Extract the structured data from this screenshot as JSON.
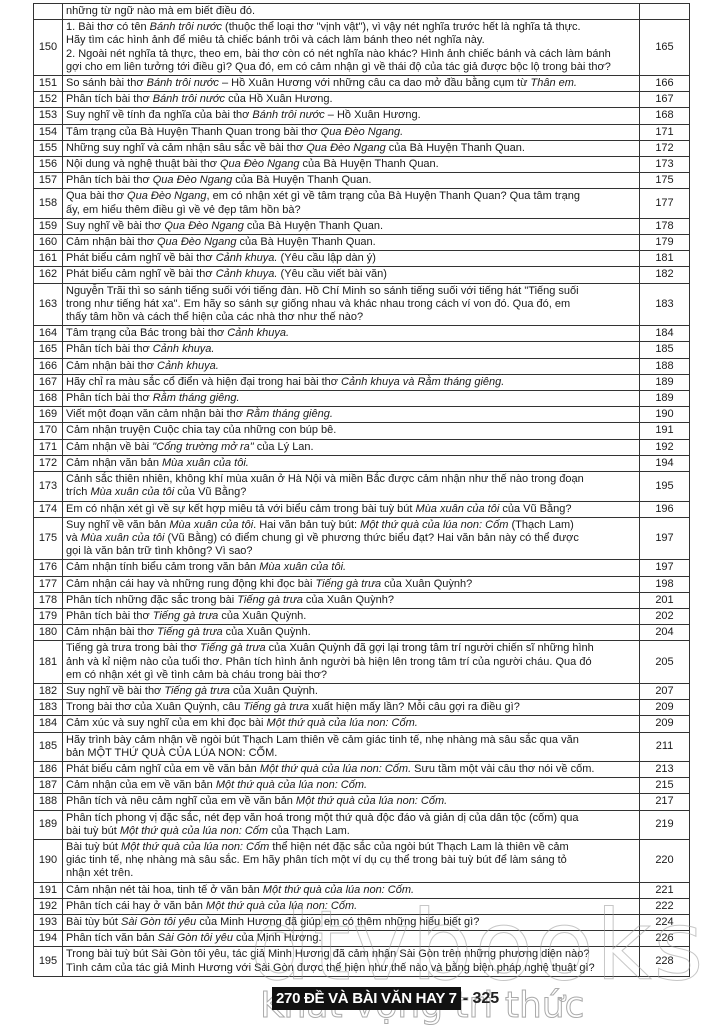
{
  "rows": [
    {
      "no": "",
      "page": "",
      "text": [
        {
          "t": "những từ ngữ nào mà em biết điều đó."
        }
      ]
    },
    {
      "no": "150",
      "page": "165",
      "text": [
        {
          "t": "1. Bài thơ có tên "
        },
        {
          "t": "Bánh trôi nước",
          "i": true
        },
        {
          "t": " (thuộc thể loại thơ \"vịnh vật\"), vì vậy nét nghĩa trước hết là nghĩa tả thực.\nHãy tìm các hình ảnh để miêu tả chiếc bánh trôi và cách làm bánh theo nét nghĩa này.\n2. Ngoài nét nghĩa tả thực, theo em, bài thơ còn có nét nghĩa nào khác? Hình ảnh chiếc bánh và cách làm bánh\ngợi cho em liên tưởng tới điều gì? Qua đó, em có cảm nhận gì về thái độ của tác giả được bộc lộ trong bài thơ?"
        }
      ]
    },
    {
      "no": "151",
      "page": "166",
      "text": [
        {
          "t": "So sánh bài thơ "
        },
        {
          "t": "Bánh trôi nước",
          "i": true
        },
        {
          "t": " – Hồ Xuân Hương với những câu ca dao mở đầu bằng cụm từ "
        },
        {
          "t": "Thân em.",
          "i": true
        }
      ]
    },
    {
      "no": "152",
      "page": "167",
      "text": [
        {
          "t": "Phân tích bài thơ "
        },
        {
          "t": "Bánh trôi nước",
          "i": true
        },
        {
          "t": " của Hồ Xuân Hương."
        }
      ]
    },
    {
      "no": "153",
      "page": "168",
      "text": [
        {
          "t": "Suy nghĩ về tính đa nghĩa của bài thơ "
        },
        {
          "t": "Bánh trôi nước",
          "i": true
        },
        {
          "t": " – Hồ Xuân Hương."
        }
      ]
    },
    {
      "no": "154",
      "page": "171",
      "text": [
        {
          "t": "Tâm trạng của Bà Huyện Thanh Quan trong bài thơ "
        },
        {
          "t": "Qua Đèo Ngang.",
          "i": true
        }
      ]
    },
    {
      "no": "155",
      "page": "172",
      "text": [
        {
          "t": "Những suy nghĩ và cảm nhận sâu sắc về bài thơ "
        },
        {
          "t": "Qua Đèo Ngang",
          "i": true
        },
        {
          "t": " của Bà Huyện Thanh Quan."
        }
      ]
    },
    {
      "no": "156",
      "page": "173",
      "text": [
        {
          "t": "Nội dung và nghệ thuật bài thơ "
        },
        {
          "t": "Qua Đèo Ngang",
          "i": true
        },
        {
          "t": " của Bà Huyện Thanh Quan."
        }
      ]
    },
    {
      "no": "157",
      "page": "175",
      "text": [
        {
          "t": "Phân tích bài thơ "
        },
        {
          "t": "Qua Đèo Ngang",
          "i": true
        },
        {
          "t": " của Bà Huyện Thanh Quan."
        }
      ]
    },
    {
      "no": "158",
      "page": "177",
      "text": [
        {
          "t": "Qua bài thơ "
        },
        {
          "t": "Qua Đèo Ngang",
          "i": true
        },
        {
          "t": ", em có nhận xét gì về tâm trạng của Bà Huyện Thanh Quan? Qua tâm trạng\nấy, em hiểu thêm điều gì về vẻ đẹp tâm hồn bà?"
        }
      ]
    },
    {
      "no": "159",
      "page": "178",
      "text": [
        {
          "t": "Suy nghĩ về bài thơ "
        },
        {
          "t": "Qua Đèo Ngang",
          "i": true
        },
        {
          "t": " của Bà Huyện Thanh Quan."
        }
      ]
    },
    {
      "no": "160",
      "page": "179",
      "text": [
        {
          "t": "Cảm nhận bài thơ "
        },
        {
          "t": "Qua Đèo Ngang",
          "i": true
        },
        {
          "t": " của Bà Huyện Thanh Quan."
        }
      ]
    },
    {
      "no": "161",
      "page": "181",
      "text": [
        {
          "t": "Phát biểu cảm nghĩ về bài thơ "
        },
        {
          "t": "Cảnh khuya.",
          "i": true
        },
        {
          "t": " (Yêu cầu lập dàn ý)"
        }
      ]
    },
    {
      "no": "162",
      "page": "182",
      "text": [
        {
          "t": "Phát biểu cảm nghĩ về bài thơ "
        },
        {
          "t": "Cảnh khuya.",
          "i": true
        },
        {
          "t": " (Yêu cầu viết bài văn)"
        }
      ]
    },
    {
      "no": "163",
      "page": "183",
      "text": [
        {
          "t": "Nguyễn Trãi thì so sánh tiếng suối với tiếng đàn. Hồ Chí Minh so sánh tiếng suối với tiếng hát \"Tiếng suối\ntrong như tiếng hát xa\". Em hãy so sánh sự giống nhau và khác nhau trong cách ví von đó. Qua đó, em\nthấy tâm hồn và cách thể hiện của các nhà thơ như thế nào?"
        }
      ]
    },
    {
      "no": "164",
      "page": "184",
      "text": [
        {
          "t": "Tâm trạng của Bác trong bài thơ "
        },
        {
          "t": "Cảnh khuya.",
          "i": true
        }
      ]
    },
    {
      "no": "165",
      "page": "185",
      "text": [
        {
          "t": "Phân tích bài thơ "
        },
        {
          "t": "Cảnh khuya.",
          "i": true
        }
      ]
    },
    {
      "no": "166",
      "page": "188",
      "text": [
        {
          "t": "Cảm nhận bài thơ "
        },
        {
          "t": "Cảnh khuya.",
          "i": true
        }
      ]
    },
    {
      "no": "167",
      "page": "189",
      "text": [
        {
          "t": "Hãy chỉ ra màu sắc cổ điển và hiện đại trong hai bài thơ "
        },
        {
          "t": "Cảnh khuya và Rằm tháng giêng.",
          "i": true
        }
      ]
    },
    {
      "no": "168",
      "page": "189",
      "text": [
        {
          "t": "Phân tích bài thơ "
        },
        {
          "t": "Rằm tháng giêng.",
          "i": true
        }
      ]
    },
    {
      "no": "169",
      "page": "190",
      "text": [
        {
          "t": "Viết một đoạn văn cảm nhận bài thơ "
        },
        {
          "t": "Rằm tháng giêng.",
          "i": true
        }
      ]
    },
    {
      "no": "170",
      "page": "191",
      "text": [
        {
          "t": "Cảm nhận truyện Cuộc chia tay của những con búp bê."
        }
      ]
    },
    {
      "no": "171",
      "page": "192",
      "text": [
        {
          "t": "Cảm nhận về bài "
        },
        {
          "t": "\"Cổng trường mở ra\"",
          "i": true
        },
        {
          "t": " của Lý Lan."
        }
      ]
    },
    {
      "no": "172",
      "page": "194",
      "text": [
        {
          "t": "Cảm nhận văn bản "
        },
        {
          "t": "Mùa xuân của tôi.",
          "i": true
        }
      ]
    },
    {
      "no": "173",
      "page": "195",
      "text": [
        {
          "t": "Cảnh sắc thiên nhiên, không khí mùa xuân ở Hà Nội và miền Bắc được cảm nhận như thế nào trong đoạn\ntrích "
        },
        {
          "t": "Mùa xuân của tôi",
          "i": true
        },
        {
          "t": " của Vũ Bằng?"
        }
      ]
    },
    {
      "no": "174",
      "page": "196",
      "text": [
        {
          "t": "Em có nhận xét gì về sự kết hợp miêu tả với biểu cảm trong bài tuỳ bút "
        },
        {
          "t": "Mùa xuân của tôi",
          "i": true
        },
        {
          "t": " của Vũ Bằng?"
        }
      ]
    },
    {
      "no": "175",
      "page": "197",
      "text": [
        {
          "t": "Suy nghĩ về văn bản "
        },
        {
          "t": "Mùa xuân của tôi",
          "i": true
        },
        {
          "t": ". Hai văn bản tuỳ bút: "
        },
        {
          "t": "Một thứ quà của lúa non: Cốm",
          "i": true
        },
        {
          "t": " (Thạch Lam)\nvà "
        },
        {
          "t": "Mùa xuân của tôi",
          "i": true
        },
        {
          "t": " (Vũ Bằng) có điểm chung gì về phương thức biểu đạt? Hai văn bản này có thể được\ngọi là văn bản trữ tình không? Vì sao?"
        }
      ]
    },
    {
      "no": "176",
      "page": "197",
      "text": [
        {
          "t": "Cảm nhận tính biểu cảm trong văn bản "
        },
        {
          "t": "Mùa xuân của tôi.",
          "i": true
        }
      ]
    },
    {
      "no": "177",
      "page": "198",
      "text": [
        {
          "t": "Cảm nhận cái hay và những rung động khi đọc bài "
        },
        {
          "t": "Tiếng gà trưa",
          "i": true
        },
        {
          "t": " của Xuân Quỳnh?"
        }
      ]
    },
    {
      "no": "178",
      "page": "201",
      "text": [
        {
          "t": "Phân tích những đặc sắc trong bài "
        },
        {
          "t": "Tiếng gà trưa",
          "i": true
        },
        {
          "t": " của Xuân Quỳnh?"
        }
      ]
    },
    {
      "no": "179",
      "page": "202",
      "text": [
        {
          "t": "Phân tích bài thơ "
        },
        {
          "t": "Tiếng gà trưa",
          "i": true
        },
        {
          "t": " của Xuân Quỳnh."
        }
      ]
    },
    {
      "no": "180",
      "page": "204",
      "text": [
        {
          "t": "Cảm nhận bài thơ "
        },
        {
          "t": "Tiếng gà trưa",
          "i": true
        },
        {
          "t": " của Xuân Quỳnh."
        }
      ]
    },
    {
      "no": "181",
      "page": "205",
      "text": [
        {
          "t": "Tiếng gà trưa trong bài thơ "
        },
        {
          "t": "Tiếng gà trưa",
          "i": true
        },
        {
          "t": " của Xuân Quỳnh đã gợi lại trong tâm trí người chiến sĩ những hình\nảnh và kỉ niệm nào của tuổi thơ. Phân tích hình ảnh người bà hiện lên trong tâm trí của người cháu. Qua đó\nem có nhận xét gì về tình cảm bà cháu trong bài thơ?"
        }
      ]
    },
    {
      "no": "182",
      "page": "207",
      "text": [
        {
          "t": "Suy nghĩ về bài thơ "
        },
        {
          "t": "Tiếng gà trưa",
          "i": true
        },
        {
          "t": " của Xuân Quỳnh."
        }
      ]
    },
    {
      "no": "183",
      "page": "209",
      "text": [
        {
          "t": "Trong bài thơ của Xuân Quỳnh, câu "
        },
        {
          "t": "Tiếng gà trưa",
          "i": true
        },
        {
          "t": " xuất hiện mấy lần? Mỗi câu gợi ra điều gì?"
        }
      ]
    },
    {
      "no": "184",
      "page": "209",
      "text": [
        {
          "t": "Cảm xúc và suy nghĩ của em khi đọc bài "
        },
        {
          "t": "Một thứ quà của lúa non: Cốm.",
          "i": true
        }
      ]
    },
    {
      "no": "185",
      "page": "211",
      "text": [
        {
          "t": "Hãy trình bày cảm nhận về ngòi bút Thạch Lam thiên về cảm giác tinh tế, nhẹ nhàng mà sâu sắc qua văn\nbản MỘT THỨ QUÀ CỦA LÚA NON: CỐM."
        }
      ]
    },
    {
      "no": "186",
      "page": "213",
      "text": [
        {
          "t": "Phát biểu cảm nghĩ của em về văn bản "
        },
        {
          "t": "Một thứ quà của lúa non: Cốm.",
          "i": true
        },
        {
          "t": " Sưu tầm một vài câu thơ nói về cốm."
        }
      ]
    },
    {
      "no": "187",
      "page": "215",
      "text": [
        {
          "t": "Cảm nhận của em về văn bản "
        },
        {
          "t": "Một thứ quà của lúa non: Cốm.",
          "i": true
        }
      ]
    },
    {
      "no": "188",
      "page": "217",
      "text": [
        {
          "t": "Phân tích và nêu cảm nghĩ của em về văn bản "
        },
        {
          "t": "Một thứ quà của lúa non: Cốm.",
          "i": true
        }
      ]
    },
    {
      "no": "189",
      "page": "219",
      "text": [
        {
          "t": "Phân tích phong vị đặc sắc, nét đẹp văn hoá trong một thứ quà độc đáo và giản dị của dân tộc (cốm) qua\nbài tuỳ bút "
        },
        {
          "t": "Một thứ quà của lúa non: Cốm",
          "i": true
        },
        {
          "t": " của Thạch Lam."
        }
      ]
    },
    {
      "no": "190",
      "page": "220",
      "text": [
        {
          "t": "Bài tuỳ bút "
        },
        {
          "t": "Một thứ quà của lúa non: Cốm",
          "i": true
        },
        {
          "t": " thể hiện nét đặc sắc của ngòi bút Thạch Lam là thiên về cảm\ngiác tinh tế, nhẹ nhàng mà sâu sắc. Em hãy phân tích một ví dụ cụ thể trong bài tuỳ bút để làm sáng tỏ\nnhận xét trên."
        }
      ]
    },
    {
      "no": "191",
      "page": "221",
      "text": [
        {
          "t": "Cảm nhận nét tài hoa, tinh tế ở văn bản "
        },
        {
          "t": "Một thứ quà của lúa non: Cốm.",
          "i": true
        }
      ]
    },
    {
      "no": "192",
      "page": "222",
      "text": [
        {
          "t": "Phân tích cái hay ở văn bản "
        },
        {
          "t": "Một thứ quà của lúa non: Cốm.",
          "i": true
        }
      ]
    },
    {
      "no": "193",
      "page": "224",
      "text": [
        {
          "t": "Bài tùy bút "
        },
        {
          "t": "Sài Gòn tôi yêu",
          "i": true
        },
        {
          "t": " của Minh Hương đã giúp em có thêm những hiểu biết gì?"
        }
      ]
    },
    {
      "no": "194",
      "page": "226",
      "text": [
        {
          "t": "Phân tích văn bản "
        },
        {
          "t": "Sài Gòn tôi yêu",
          "i": true
        },
        {
          "t": " của Minh Hương."
        }
      ]
    },
    {
      "no": "195",
      "page": "228",
      "text": [
        {
          "t": "Trong bài tuỳ bút Sài Gòn tôi yêu, tác giả Minh Hương đã cảm nhận Sài Gòn trên những phương diện nào?\nTình cảm của tác giả Minh Hương với Sài Gòn được thể hiện như thế nào và bằng biện pháp nghệ thuật gì?"
        }
      ]
    }
  ],
  "footer": {
    "book_title": "270 ĐỀ VÀ BÀI VĂN HAY 7",
    "page_number": "- 325"
  },
  "watermark": {
    "brand": "dtvbooks",
    "slogan": "Khát vọng tri thức"
  }
}
